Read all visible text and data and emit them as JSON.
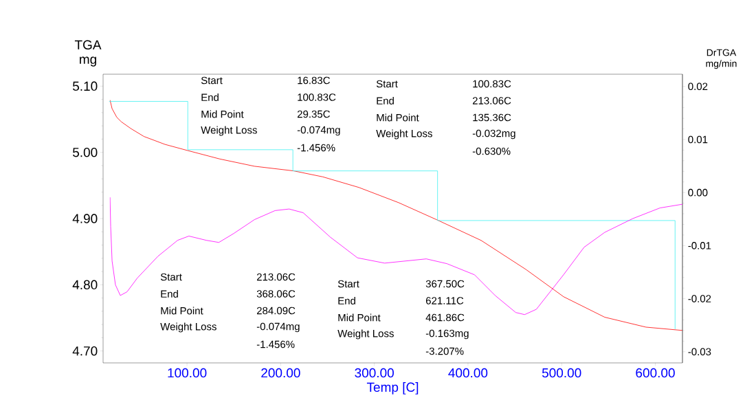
{
  "chart_data": {
    "type": "line",
    "xlabel": "Temp [C]",
    "ylabel": "TGA mg",
    "y2label": "DrTGA mg/min",
    "xlim": [
      10.4,
      629
    ],
    "ylim": [
      4.682,
      5.118
    ],
    "y2lim": [
      -0.0321,
      0.0223
    ],
    "xticks": [
      {
        "value": 100,
        "label": "100.00"
      },
      {
        "value": 200,
        "label": "200.00"
      },
      {
        "value": 300,
        "label": "300.00"
      },
      {
        "value": 400,
        "label": "400.00"
      },
      {
        "value": 500,
        "label": "500.00"
      },
      {
        "value": 600,
        "label": "600.00"
      }
    ],
    "yticks": [
      {
        "value": 4.7,
        "label": "4.70"
      },
      {
        "value": 4.8,
        "label": "4.80"
      },
      {
        "value": 4.9,
        "label": "4.90"
      },
      {
        "value": 5.0,
        "label": "5.00"
      },
      {
        "value": 5.1,
        "label": "5.10"
      }
    ],
    "y2ticks": [
      {
        "value": -0.03,
        "label": "-0.03"
      },
      {
        "value": -0.02,
        "label": "-0.02"
      },
      {
        "value": -0.01,
        "label": "-0.01"
      },
      {
        "value": 0,
        "label": "0.00"
      },
      {
        "value": 0.01,
        "label": "0.01"
      },
      {
        "value": 0.02,
        "label": "0.02"
      }
    ],
    "series": [
      {
        "color": "#ff0000",
        "x": [
          17.8,
          20,
          25,
          30,
          40,
          54,
          76.5,
          100,
          135,
          172,
          214,
          245,
          283.5,
          326,
          367,
          414,
          462,
          502,
          546,
          590,
          629
        ],
        "values": [
          5.079,
          5.066,
          5.053,
          5.046,
          5.036,
          5.024,
          5.012,
          5.003,
          4.99,
          4.979,
          4.972,
          4.963,
          4.947,
          4.924,
          4.898,
          4.867,
          4.823,
          4.782,
          4.751,
          4.736,
          4.731
        ]
      },
      {
        "axis": "y2",
        "color": "#ff00ff",
        "x": [
          17.8,
          18.5,
          20,
          23.6,
          28.8,
          36,
          47,
          69,
          90,
          102,
          120.6,
          134,
          150,
          172,
          194,
          209,
          224,
          253,
          282,
          311,
          355.5,
          377.5,
          407,
          429,
          451,
          460.5,
          473,
          502,
          524,
          546,
          576,
          605,
          629
        ],
        "values": [
          -0.0009,
          -0.0064,
          -0.0129,
          -0.0174,
          -0.0194,
          -0.0187,
          -0.0161,
          -0.012,
          -0.009,
          -0.0082,
          -0.009,
          -0.0094,
          -0.0077,
          -0.0051,
          -0.0034,
          -0.0031,
          -0.0038,
          -0.0084,
          -0.0123,
          -0.0133,
          -0.0125,
          -0.0134,
          -0.0155,
          -0.0194,
          -0.0226,
          -0.023,
          -0.022,
          -0.0155,
          -0.0103,
          -0.0075,
          -0.0049,
          -0.0029,
          -0.0022
        ]
      },
      {
        "type": "step",
        "color": "#40f0f0",
        "x": [
          16.83,
          100.83,
          213.06,
          367.5,
          621.11
        ],
        "values": [
          5.077,
          5.004,
          4.972,
          4.897,
          4.733
        ]
      }
    ],
    "annotations": [
      "Start",
      "16.83C",
      "End",
      "100.83C",
      "Mid Point",
      "29.35C",
      "Weight Loss",
      "-0.074mg",
      "-1.456%",
      "Start",
      "100.83C",
      "End",
      "213.06C",
      "Mid Point",
      "135.36C",
      "Weight Loss",
      "-0.032mg",
      "-0.630%",
      "Start",
      "213.06C",
      "End",
      "368.06C",
      "Mid Point",
      "284.09C",
      "Weight Loss",
      "-0.074mg",
      "-1.456%",
      "Start",
      "367.50C",
      "End",
      "621.11C",
      "Mid Point",
      "461.86C",
      "Weight Loss",
      "-0.163mg",
      "-3.207%"
    ]
  }
}
